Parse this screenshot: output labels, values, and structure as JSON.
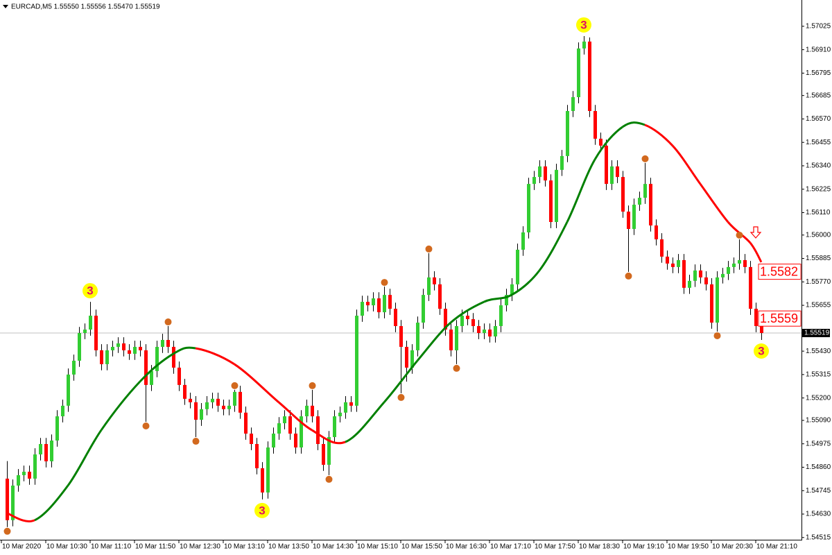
{
  "chart_data": {
    "type": "candlestick",
    "title": "EURCAD,M5 1.55550 1.55556 1.55470 1.55519",
    "categories": [
      "10 Mar 2020",
      null,
      null,
      null,
      null,
      null,
      null,
      null,
      "10 Mar 10:30",
      null,
      null,
      null,
      null,
      null,
      null,
      null,
      "10 Mar 11:10",
      null,
      null,
      null,
      null,
      null,
      null,
      null,
      "10 Mar 11:50",
      null,
      null,
      null,
      null,
      null,
      null,
      null,
      "10 Mar 12:30",
      null,
      null,
      null,
      null,
      null,
      null,
      null,
      "10 Mar 13:10",
      null,
      null,
      null,
      null,
      null,
      null,
      null,
      "10 Mar 13:50",
      null,
      null,
      null,
      null,
      null,
      null,
      null,
      "10 Mar 14:30",
      null,
      null,
      null,
      null,
      null,
      null,
      null,
      "10 Mar 15:10",
      null,
      null,
      null,
      null,
      null,
      null,
      null,
      "10 Mar 15:50",
      null,
      null,
      null,
      null,
      null,
      null,
      null,
      "10 Mar 16:30",
      null,
      null,
      null,
      null,
      null,
      null,
      null,
      "10 Mar 17:10",
      null,
      null,
      null,
      null,
      null,
      null,
      null,
      "10 Mar 17:50",
      null,
      null,
      null,
      null,
      null,
      null,
      null,
      "10 Mar 18:30",
      null,
      null,
      null,
      null,
      null,
      null,
      null,
      "10 Mar 19:10",
      null,
      null,
      null,
      null,
      null,
      null,
      null,
      "10 Mar 19:50",
      null,
      null,
      null,
      null,
      null,
      null,
      null,
      "10 Mar 20:30",
      null,
      null,
      null,
      null,
      null,
      null,
      null,
      "10 Mar 21:10"
    ],
    "open": [
      1.54804,
      1.546,
      1.5477,
      1.54821,
      1.54838,
      1.54804,
      1.54923,
      1.54974,
      1.54889,
      1.54991,
      1.5511,
      1.55162,
      1.55315,
      1.55383,
      1.55519,
      1.55536,
      1.55604,
      1.55434,
      1.55366,
      1.55434,
      1.55451,
      1.55468,
      1.55434,
      1.55417,
      1.55451,
      1.55434,
      1.55264,
      1.55332,
      1.55451,
      1.55485,
      1.55451,
      1.55349,
      1.55264,
      1.55196,
      1.55179,
      1.55093,
      1.55145,
      1.55179,
      1.55196,
      1.55162,
      1.55145,
      1.55162,
      1.5523,
      1.55128,
      1.55025,
      1.54974,
      1.54855,
      1.54736,
      1.54957,
      1.55025,
      1.55076,
      1.5511,
      1.55025,
      1.54957,
      1.5511,
      1.55162,
      1.5511,
      1.54974,
      1.54872,
      1.55008,
      1.5511,
      1.55128,
      1.55179,
      1.55162,
      1.55604,
      1.55672,
      1.55655,
      1.55689,
      1.55621,
      1.55706,
      1.55638,
      1.55553,
      1.55451,
      1.55349,
      1.55434,
      1.5557,
      1.55706,
      1.55792,
      1.55758,
      1.55638,
      1.55536,
      1.55434,
      1.55553,
      1.55604,
      1.55587,
      1.55553,
      1.55519,
      1.55536,
      1.55502,
      1.55553,
      1.55655,
      1.55706,
      1.55758,
      1.55928,
      1.56013,
      1.56251,
      1.56285,
      1.56337,
      1.56268,
      1.56064,
      1.5632,
      1.56388,
      1.56609,
      1.56677,
      1.56916,
      1.5695,
      1.56609,
      1.56473,
      1.56439,
      1.56251,
      1.56337,
      1.56285,
      1.56115,
      1.5603,
      1.56149,
      1.56183,
      1.56251,
      1.56047,
      1.55979,
      1.55894,
      1.5586,
      1.55843,
      1.55877,
      1.55741,
      1.55775,
      1.55826,
      1.55792,
      1.55758,
      1.5557,
      1.55792,
      1.55809,
      1.55843,
      1.5586,
      1.55877,
      1.55843,
      1.55638,
      1.55553
    ],
    "high": [
      1.5489,
      1.548,
      1.54851,
      1.54868,
      1.54868,
      1.54953,
      1.55004,
      1.55004,
      1.55021,
      1.5514,
      1.55192,
      1.55345,
      1.55413,
      1.55549,
      1.55566,
      1.55672,
      1.55634,
      1.55464,
      1.55464,
      1.55481,
      1.55498,
      1.55498,
      1.55464,
      1.55481,
      1.55481,
      1.55464,
      1.55362,
      1.55481,
      1.55515,
      1.55553,
      1.55481,
      1.55379,
      1.55294,
      1.55226,
      1.55209,
      1.55175,
      1.55209,
      1.55226,
      1.55226,
      1.55192,
      1.55192,
      1.5524,
      1.5526,
      1.55158,
      1.55055,
      1.55004,
      1.54885,
      1.54987,
      1.55055,
      1.55106,
      1.5514,
      1.5514,
      1.55055,
      1.5514,
      1.55192,
      1.5524,
      1.5514,
      1.55004,
      1.55038,
      1.5514,
      1.55158,
      1.55209,
      1.55209,
      1.55634,
      1.55702,
      1.55702,
      1.55719,
      1.55719,
      1.55747,
      1.55736,
      1.55668,
      1.55583,
      1.55481,
      1.55464,
      1.556,
      1.55736,
      1.55911,
      1.55822,
      1.55788,
      1.55668,
      1.55566,
      1.55583,
      1.55634,
      1.55634,
      1.55617,
      1.55583,
      1.55566,
      1.55566,
      1.55583,
      1.55685,
      1.55736,
      1.55788,
      1.55958,
      1.56043,
      1.56281,
      1.56315,
      1.56367,
      1.56367,
      1.56298,
      1.5635,
      1.56418,
      1.56639,
      1.56707,
      1.56946,
      1.56977,
      1.5697,
      1.56639,
      1.56503,
      1.56469,
      1.56367,
      1.56367,
      1.56315,
      1.56145,
      1.56179,
      1.56213,
      1.56354,
      1.56281,
      1.56077,
      1.56009,
      1.55924,
      1.5589,
      1.55907,
      1.55907,
      1.55805,
      1.55856,
      1.55856,
      1.55822,
      1.55788,
      1.55822,
      1.55839,
      1.55873,
      1.5589,
      1.55979,
      1.55907,
      1.55873,
      1.55668,
      1.55583
    ],
    "low": [
      1.54566,
      1.5457,
      1.5474,
      1.54791,
      1.54774,
      1.54774,
      1.54893,
      1.54859,
      1.54859,
      1.54961,
      1.5508,
      1.55132,
      1.55285,
      1.55353,
      1.55489,
      1.55506,
      1.55404,
      1.55336,
      1.55336,
      1.55404,
      1.55421,
      1.55404,
      1.55387,
      1.55387,
      1.55404,
      1.55083,
      1.55234,
      1.55302,
      1.55421,
      1.55421,
      1.55319,
      1.55234,
      1.55166,
      1.55149,
      1.55008,
      1.55063,
      1.55115,
      1.55149,
      1.55132,
      1.55115,
      1.55115,
      1.55132,
      1.55098,
      1.54995,
      1.54944,
      1.54825,
      1.54702,
      1.54706,
      1.54927,
      1.54995,
      1.55046,
      1.54995,
      1.54927,
      1.54927,
      1.5508,
      1.5508,
      1.54944,
      1.54842,
      1.54821,
      1.54978,
      1.5508,
      1.55098,
      1.55132,
      1.55132,
      1.55574,
      1.55625,
      1.55625,
      1.55591,
      1.55591,
      1.55608,
      1.55523,
      1.55223,
      1.5528,
      1.55319,
      1.55404,
      1.5554,
      1.55676,
      1.55728,
      1.55608,
      1.55506,
      1.55404,
      1.55366,
      1.55523,
      1.55557,
      1.55523,
      1.55489,
      1.55489,
      1.55472,
      1.55472,
      1.55523,
      1.55625,
      1.55676,
      1.55728,
      1.55898,
      1.55983,
      1.56221,
      1.56255,
      1.56238,
      1.56034,
      1.56034,
      1.5629,
      1.56358,
      1.56579,
      1.56647,
      1.56886,
      1.56579,
      1.56443,
      1.56409,
      1.56221,
      1.56221,
      1.56255,
      1.56085,
      1.55819,
      1.56,
      1.56119,
      1.56153,
      1.56017,
      1.55949,
      1.55864,
      1.5583,
      1.55813,
      1.55813,
      1.55711,
      1.55711,
      1.55745,
      1.55762,
      1.55728,
      1.5554,
      1.55526,
      1.55762,
      1.55779,
      1.55813,
      1.5583,
      1.55813,
      1.55608,
      1.55523,
      1.55485
    ],
    "close": [
      1.546,
      1.5477,
      1.54821,
      1.54838,
      1.54804,
      1.54923,
      1.54974,
      1.54889,
      1.54991,
      1.5511,
      1.55162,
      1.55315,
      1.55383,
      1.55519,
      1.55536,
      1.55604,
      1.55434,
      1.55366,
      1.55434,
      1.55451,
      1.55468,
      1.55434,
      1.55417,
      1.55451,
      1.55434,
      1.55264,
      1.55332,
      1.55451,
      1.55485,
      1.55451,
      1.55349,
      1.55264,
      1.55196,
      1.55179,
      1.55093,
      1.55145,
      1.55179,
      1.55196,
      1.55162,
      1.55145,
      1.55162,
      1.5523,
      1.55128,
      1.55025,
      1.54974,
      1.54855,
      1.54736,
      1.54957,
      1.55025,
      1.55076,
      1.5511,
      1.55025,
      1.54957,
      1.5511,
      1.55162,
      1.5511,
      1.54974,
      1.54872,
      1.55008,
      1.5511,
      1.55128,
      1.55179,
      1.55162,
      1.55604,
      1.55672,
      1.55655,
      1.55689,
      1.55621,
      1.55706,
      1.55638,
      1.55553,
      1.55451,
      1.55349,
      1.55434,
      1.5557,
      1.55706,
      1.55792,
      1.55758,
      1.55638,
      1.55536,
      1.55434,
      1.55553,
      1.55604,
      1.55587,
      1.55553,
      1.55519,
      1.55536,
      1.55502,
      1.55553,
      1.55655,
      1.55706,
      1.55758,
      1.55928,
      1.56013,
      1.56251,
      1.56285,
      1.56337,
      1.56268,
      1.56064,
      1.5632,
      1.56388,
      1.56609,
      1.56677,
      1.56916,
      1.5695,
      1.56609,
      1.56473,
      1.56439,
      1.56251,
      1.56337,
      1.56285,
      1.56115,
      1.5603,
      1.56149,
      1.56183,
      1.56251,
      1.56047,
      1.55979,
      1.55894,
      1.5586,
      1.55843,
      1.55877,
      1.55741,
      1.55775,
      1.55826,
      1.55792,
      1.55758,
      1.5557,
      1.55792,
      1.55809,
      1.55843,
      1.5586,
      1.55877,
      1.55843,
      1.55638,
      1.55553,
      1.55519
    ],
    "up_color": "#32cd32",
    "down_color": "#ff0000",
    "wick_color": "#000000",
    "ylim": [
      1.54504,
      1.57154
    ],
    "yticks": [
      1.57025,
      {
        "value": 1.5691,
        "label": "1.56910"
      },
      1.56795,
      1.56685,
      {
        "value": 1.5657,
        "label": "1.56570"
      },
      1.56455,
      {
        "value": 1.5634,
        "label": "1.56340"
      },
      1.56225,
      {
        "value": 1.5611,
        "label": "1.56110"
      },
      {
        "value": 1.56,
        "label": "1.56000"
      },
      1.55885,
      {
        "value": 1.5577,
        "label": "1.55770"
      },
      1.55655,
      {
        "value": 1.5543,
        "label": "1.55430"
      },
      1.55315,
      {
        "value": 1.552,
        "label": "1.55200"
      },
      {
        "value": 1.5509,
        "label": "1.55090"
      },
      1.54975,
      {
        "value": 1.5486,
        "label": "1.54860"
      },
      1.54745,
      {
        "value": 1.5463,
        "label": "1.54630"
      },
      1.54515
    ],
    "grid": false,
    "current_price": 1.55519,
    "ma": {
      "index": [
        0,
        5,
        11,
        17,
        24,
        30,
        34,
        41,
        49,
        55,
        61,
        68,
        74,
        80,
        86,
        91,
        96,
        101,
        106,
        111,
        115,
        120,
        125,
        130,
        134,
        136
      ],
      "values": [
        1.54634,
        1.546,
        1.5477,
        1.55042,
        1.55281,
        1.55417,
        1.55444,
        1.55366,
        1.55179,
        1.55042,
        1.54984,
        1.55179,
        1.55383,
        1.5557,
        1.55672,
        1.55706,
        1.55826,
        1.56064,
        1.56371,
        1.56531,
        1.56541,
        1.56439,
        1.56251,
        1.56064,
        1.55962,
        1.55867
      ],
      "up_color": "#008000",
      "down_color": "#ff0000"
    },
    "fractals": [
      {
        "candle": 0,
        "at": "low"
      },
      {
        "candle": 25,
        "at": "low"
      },
      {
        "candle": 29,
        "at": "high"
      },
      {
        "candle": 34,
        "at": "low"
      },
      {
        "candle": 41,
        "at": "high"
      },
      {
        "candle": 55,
        "at": "high"
      },
      {
        "candle": 58,
        "at": "low"
      },
      {
        "candle": 68,
        "at": "high"
      },
      {
        "candle": 71,
        "at": "low"
      },
      {
        "candle": 76,
        "at": "high"
      },
      {
        "candle": 81,
        "at": "low"
      },
      {
        "candle": 112,
        "at": "low"
      },
      {
        "candle": 115,
        "at": "high"
      },
      {
        "candle": 128,
        "at": "low"
      },
      {
        "candle": 132,
        "at": "high"
      }
    ],
    "fractal_color": "#d2691e",
    "signals": [
      {
        "text": "3",
        "candle": 15,
        "at": "high"
      },
      {
        "text": "3",
        "candle": 46,
        "at": "low"
      },
      {
        "text": "3",
        "candle": 104,
        "at": "high"
      },
      {
        "text": "3",
        "candle": 136,
        "at": "low"
      }
    ],
    "signal_color": "#ffff00",
    "level_labels": [
      1.5582,
      1.5559
    ]
  }
}
